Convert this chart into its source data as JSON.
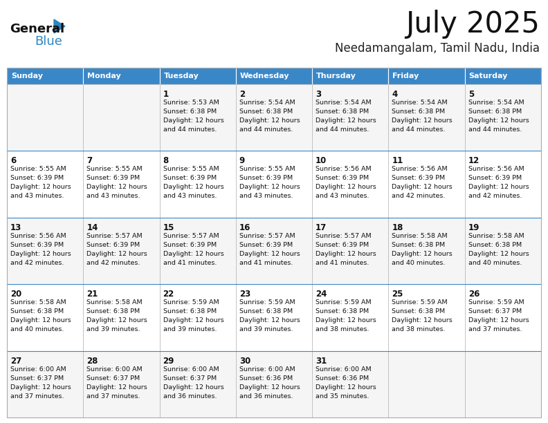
{
  "title": "July 2025",
  "subtitle": "Needamangalam, Tamil Nadu, India",
  "days_of_week": [
    "Sunday",
    "Monday",
    "Tuesday",
    "Wednesday",
    "Thursday",
    "Friday",
    "Saturday"
  ],
  "header_bg": "#3a87c8",
  "header_text": "#FFFFFF",
  "row_bg_odd": "#F5F5F5",
  "row_bg_even": "#FFFFFF",
  "border_color": "#AAAAAA",
  "border_color_dark": "#3a87c8",
  "title_color": "#111111",
  "subtitle_color": "#222222",
  "text_color": "#111111",
  "logo_black": "#111111",
  "logo_blue": "#2E86C1",
  "calendar": [
    [
      {
        "day": null,
        "sunrise": null,
        "sunset": null,
        "daylight_h": null,
        "daylight_m": null
      },
      {
        "day": null,
        "sunrise": null,
        "sunset": null,
        "daylight_h": null,
        "daylight_m": null
      },
      {
        "day": 1,
        "sunrise": "5:53 AM",
        "sunset": "6:38 PM",
        "daylight_h": "12 hours",
        "daylight_m": "and 44 minutes."
      },
      {
        "day": 2,
        "sunrise": "5:54 AM",
        "sunset": "6:38 PM",
        "daylight_h": "12 hours",
        "daylight_m": "and 44 minutes."
      },
      {
        "day": 3,
        "sunrise": "5:54 AM",
        "sunset": "6:38 PM",
        "daylight_h": "12 hours",
        "daylight_m": "and 44 minutes."
      },
      {
        "day": 4,
        "sunrise": "5:54 AM",
        "sunset": "6:38 PM",
        "daylight_h": "12 hours",
        "daylight_m": "and 44 minutes."
      },
      {
        "day": 5,
        "sunrise": "5:54 AM",
        "sunset": "6:38 PM",
        "daylight_h": "12 hours",
        "daylight_m": "and 44 minutes."
      }
    ],
    [
      {
        "day": 6,
        "sunrise": "5:55 AM",
        "sunset": "6:39 PM",
        "daylight_h": "12 hours",
        "daylight_m": "and 43 minutes."
      },
      {
        "day": 7,
        "sunrise": "5:55 AM",
        "sunset": "6:39 PM",
        "daylight_h": "12 hours",
        "daylight_m": "and 43 minutes."
      },
      {
        "day": 8,
        "sunrise": "5:55 AM",
        "sunset": "6:39 PM",
        "daylight_h": "12 hours",
        "daylight_m": "and 43 minutes."
      },
      {
        "day": 9,
        "sunrise": "5:55 AM",
        "sunset": "6:39 PM",
        "daylight_h": "12 hours",
        "daylight_m": "and 43 minutes."
      },
      {
        "day": 10,
        "sunrise": "5:56 AM",
        "sunset": "6:39 PM",
        "daylight_h": "12 hours",
        "daylight_m": "and 43 minutes."
      },
      {
        "day": 11,
        "sunrise": "5:56 AM",
        "sunset": "6:39 PM",
        "daylight_h": "12 hours",
        "daylight_m": "and 42 minutes."
      },
      {
        "day": 12,
        "sunrise": "5:56 AM",
        "sunset": "6:39 PM",
        "daylight_h": "12 hours",
        "daylight_m": "and 42 minutes."
      }
    ],
    [
      {
        "day": 13,
        "sunrise": "5:56 AM",
        "sunset": "6:39 PM",
        "daylight_h": "12 hours",
        "daylight_m": "and 42 minutes."
      },
      {
        "day": 14,
        "sunrise": "5:57 AM",
        "sunset": "6:39 PM",
        "daylight_h": "12 hours",
        "daylight_m": "and 42 minutes."
      },
      {
        "day": 15,
        "sunrise": "5:57 AM",
        "sunset": "6:39 PM",
        "daylight_h": "12 hours",
        "daylight_m": "and 41 minutes."
      },
      {
        "day": 16,
        "sunrise": "5:57 AM",
        "sunset": "6:39 PM",
        "daylight_h": "12 hours",
        "daylight_m": "and 41 minutes."
      },
      {
        "day": 17,
        "sunrise": "5:57 AM",
        "sunset": "6:39 PM",
        "daylight_h": "12 hours",
        "daylight_m": "and 41 minutes."
      },
      {
        "day": 18,
        "sunrise": "5:58 AM",
        "sunset": "6:38 PM",
        "daylight_h": "12 hours",
        "daylight_m": "and 40 minutes."
      },
      {
        "day": 19,
        "sunrise": "5:58 AM",
        "sunset": "6:38 PM",
        "daylight_h": "12 hours",
        "daylight_m": "and 40 minutes."
      }
    ],
    [
      {
        "day": 20,
        "sunrise": "5:58 AM",
        "sunset": "6:38 PM",
        "daylight_h": "12 hours",
        "daylight_m": "and 40 minutes."
      },
      {
        "day": 21,
        "sunrise": "5:58 AM",
        "sunset": "6:38 PM",
        "daylight_h": "12 hours",
        "daylight_m": "and 39 minutes."
      },
      {
        "day": 22,
        "sunrise": "5:59 AM",
        "sunset": "6:38 PM",
        "daylight_h": "12 hours",
        "daylight_m": "and 39 minutes."
      },
      {
        "day": 23,
        "sunrise": "5:59 AM",
        "sunset": "6:38 PM",
        "daylight_h": "12 hours",
        "daylight_m": "and 39 minutes."
      },
      {
        "day": 24,
        "sunrise": "5:59 AM",
        "sunset": "6:38 PM",
        "daylight_h": "12 hours",
        "daylight_m": "and 38 minutes."
      },
      {
        "day": 25,
        "sunrise": "5:59 AM",
        "sunset": "6:38 PM",
        "daylight_h": "12 hours",
        "daylight_m": "and 38 minutes."
      },
      {
        "day": 26,
        "sunrise": "5:59 AM",
        "sunset": "6:37 PM",
        "daylight_h": "12 hours",
        "daylight_m": "and 37 minutes."
      }
    ],
    [
      {
        "day": 27,
        "sunrise": "6:00 AM",
        "sunset": "6:37 PM",
        "daylight_h": "12 hours",
        "daylight_m": "and 37 minutes."
      },
      {
        "day": 28,
        "sunrise": "6:00 AM",
        "sunset": "6:37 PM",
        "daylight_h": "12 hours",
        "daylight_m": "and 37 minutes."
      },
      {
        "day": 29,
        "sunrise": "6:00 AM",
        "sunset": "6:37 PM",
        "daylight_h": "12 hours",
        "daylight_m": "and 36 minutes."
      },
      {
        "day": 30,
        "sunrise": "6:00 AM",
        "sunset": "6:36 PM",
        "daylight_h": "12 hours",
        "daylight_m": "and 36 minutes."
      },
      {
        "day": 31,
        "sunrise": "6:00 AM",
        "sunset": "6:36 PM",
        "daylight_h": "12 hours",
        "daylight_m": "and 35 minutes."
      },
      {
        "day": null,
        "sunrise": null,
        "sunset": null,
        "daylight_h": null,
        "daylight_m": null
      },
      {
        "day": null,
        "sunrise": null,
        "sunset": null,
        "daylight_h": null,
        "daylight_m": null
      }
    ]
  ]
}
